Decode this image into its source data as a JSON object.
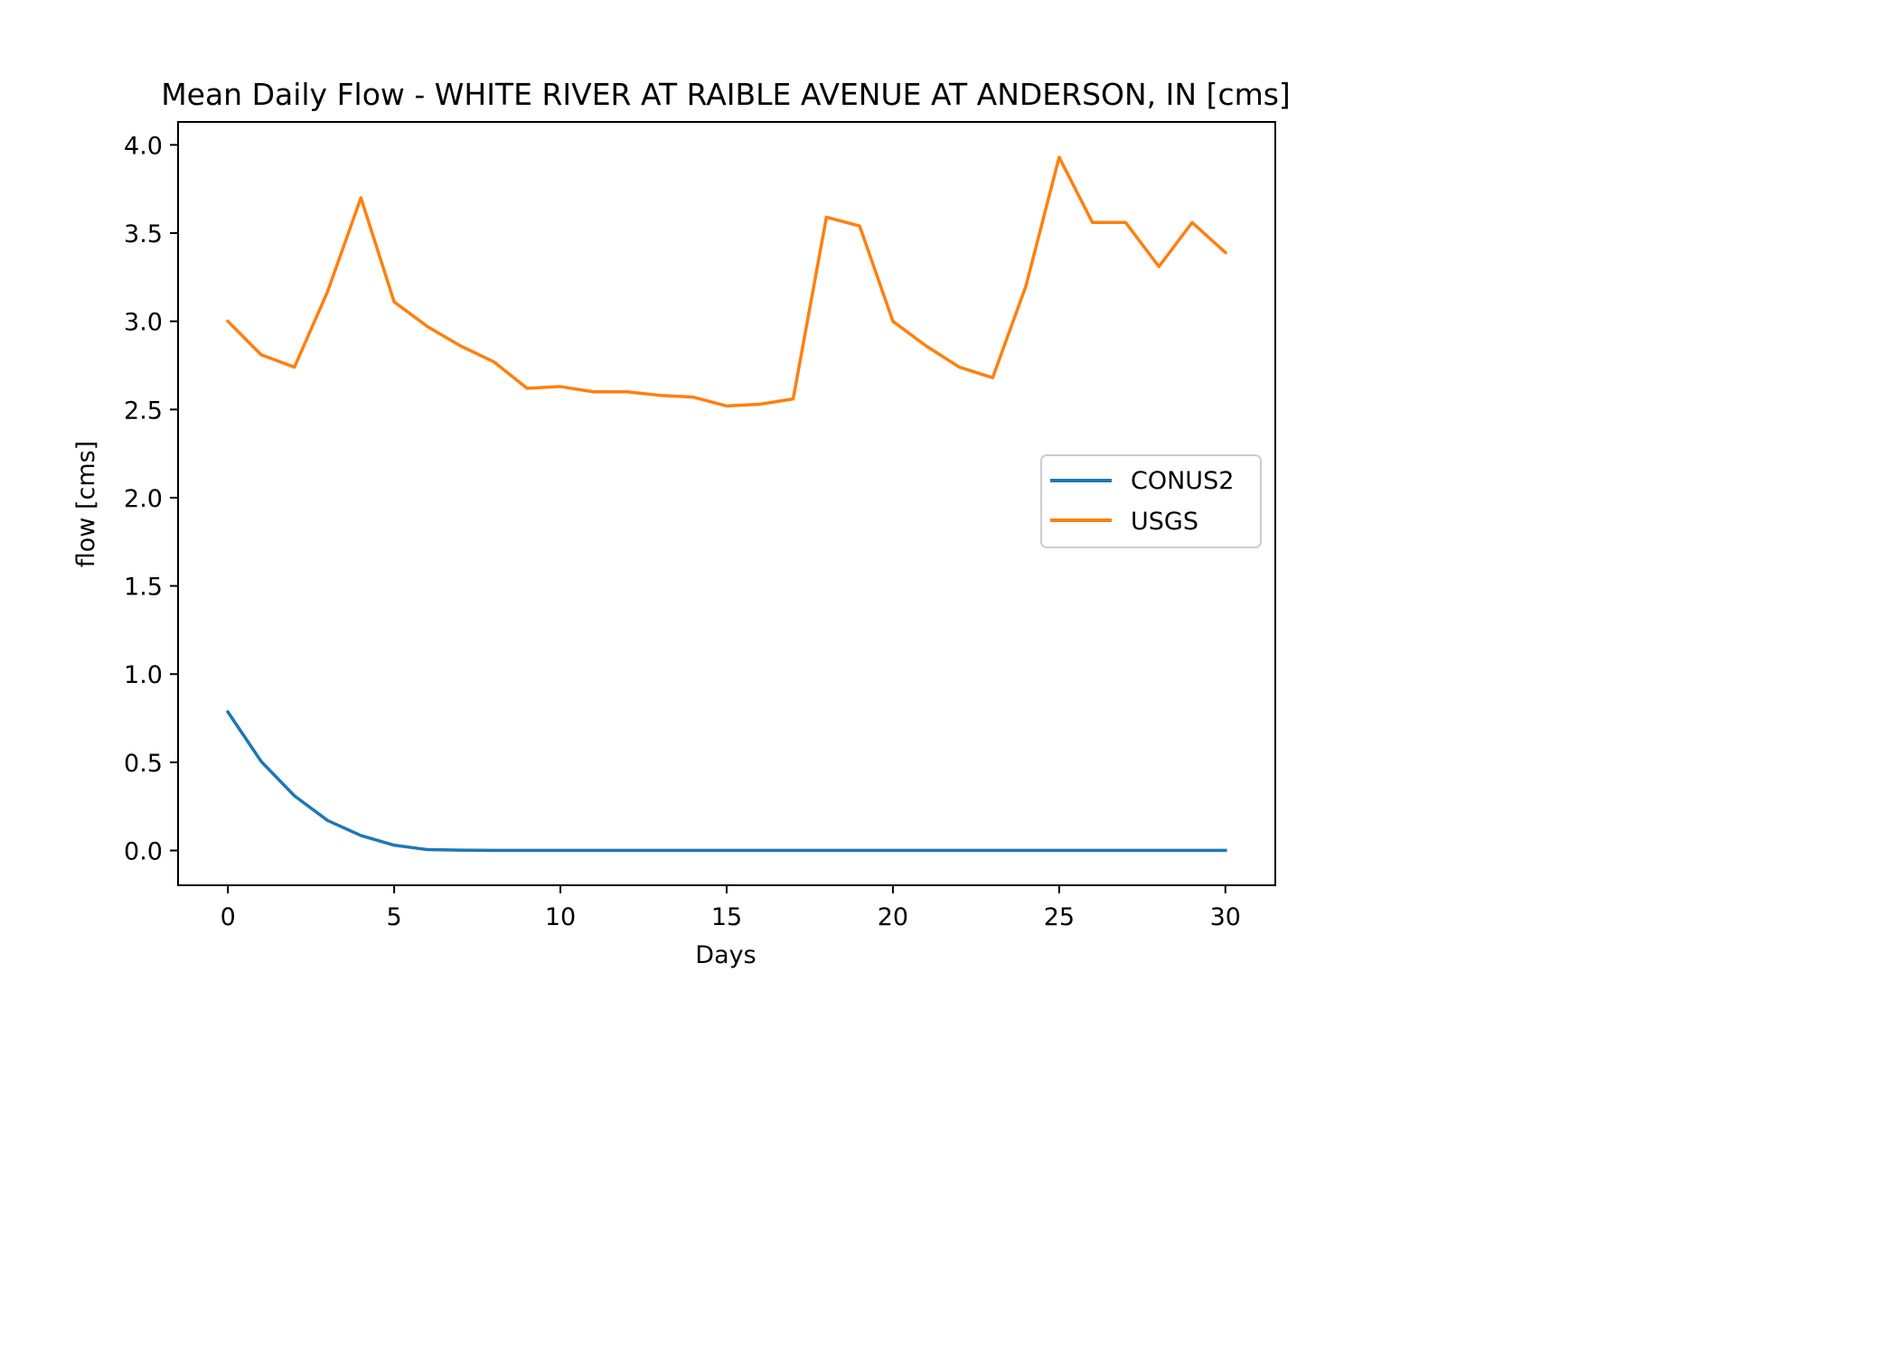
{
  "chart_data": {
    "type": "line",
    "title": "Mean Daily Flow - WHITE RIVER AT RAIBLE AVENUE AT ANDERSON, IN [cms]",
    "xlabel": "Days",
    "ylabel": "flow [cms]",
    "xlim": [
      -1.5,
      31.5
    ],
    "ylim": [
      -0.197,
      4.13
    ],
    "xticks": [
      0,
      5,
      10,
      15,
      20,
      25,
      30
    ],
    "yticks": [
      0.0,
      0.5,
      1.0,
      1.5,
      2.0,
      2.5,
      3.0,
      3.5,
      4.0
    ],
    "grid": false,
    "legend_position": "center-right",
    "x": [
      0,
      1,
      2,
      3,
      4,
      5,
      6,
      7,
      8,
      9,
      10,
      11,
      12,
      13,
      14,
      15,
      16,
      17,
      18,
      19,
      20,
      21,
      22,
      23,
      24,
      25,
      26,
      27,
      28,
      29,
      30
    ],
    "series": [
      {
        "name": "CONUS2",
        "color": "#1f77b4",
        "values": [
          0.785,
          0.505,
          0.31,
          0.17,
          0.085,
          0.03,
          0.005,
          0.002,
          0.001,
          0.001,
          0.001,
          0.001,
          0.001,
          0.001,
          0.001,
          0.001,
          0.001,
          0.001,
          0.001,
          0.001,
          0.001,
          0.001,
          0.001,
          0.001,
          0.001,
          0.001,
          0.001,
          0.001,
          0.001,
          0.001,
          0.001
        ]
      },
      {
        "name": "USGS",
        "color": "#ff7f0e",
        "values": [
          3.0,
          2.81,
          2.74,
          3.17,
          3.7,
          3.11,
          2.97,
          2.86,
          2.77,
          2.62,
          2.63,
          2.6,
          2.6,
          2.58,
          2.57,
          2.52,
          2.53,
          2.56,
          3.59,
          3.54,
          3.0,
          2.86,
          2.74,
          2.68,
          3.2,
          3.93,
          3.56,
          3.56,
          3.31,
          3.56,
          3.39
        ]
      }
    ]
  }
}
